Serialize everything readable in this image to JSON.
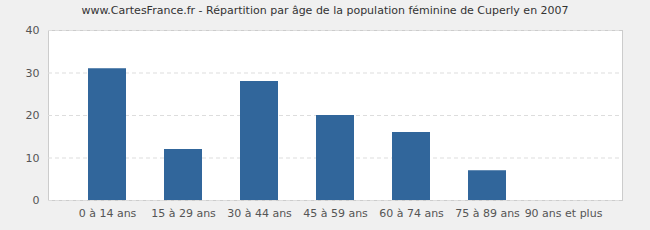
{
  "chart_data": {
    "type": "bar",
    "title": "www.CartesFrance.fr - Répartition par âge de la population féminine de Cuperly en 2007",
    "categories": [
      "0 à 14 ans",
      "15 à 29 ans",
      "30 à 44 ans",
      "45 à 59 ans",
      "60 à 74 ans",
      "75 à 89 ans",
      "90 ans et plus"
    ],
    "values": [
      31,
      12,
      28,
      20,
      16,
      7,
      0
    ],
    "color": "#31669b",
    "ylim": [
      0,
      40
    ],
    "yticks": [
      0,
      10,
      20,
      30,
      40
    ],
    "grid": true
  }
}
